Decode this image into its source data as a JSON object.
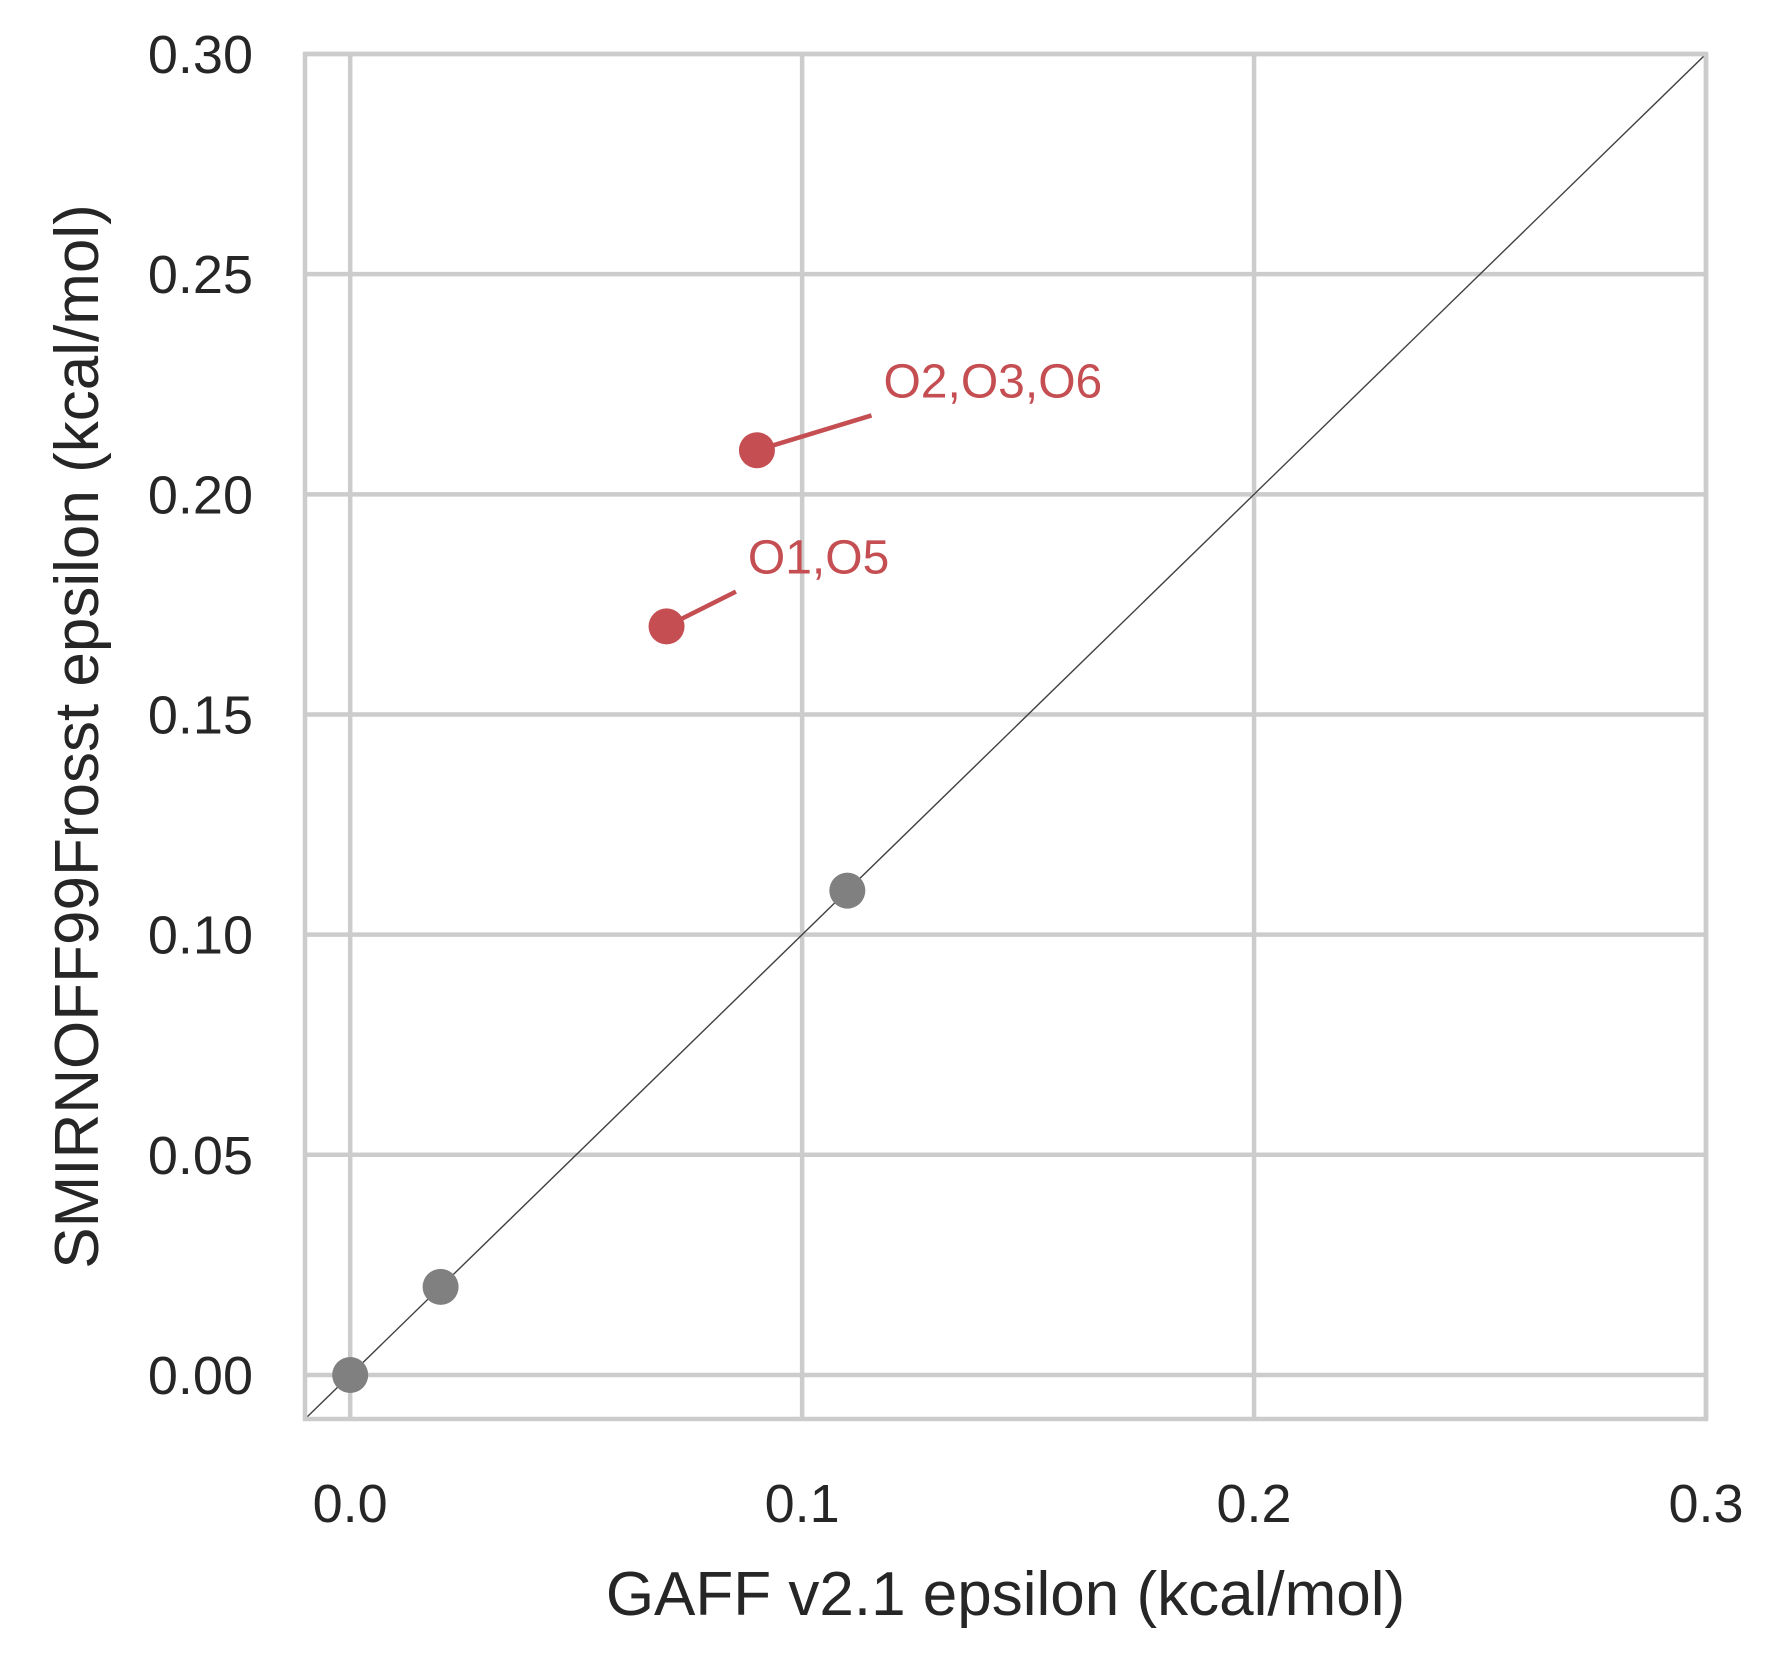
{
  "chart_data": {
    "type": "scatter",
    "title": "",
    "xlabel": "GAFF v2.1 epsilon (kcal/mol)",
    "ylabel": "SMIRNOFF99Frosst epsilon (kcal/mol)",
    "xlim": [
      -0.01,
      0.3
    ],
    "ylim": [
      -0.01,
      0.3
    ],
    "xticks": [
      0.0,
      0.1,
      0.2,
      0.3
    ],
    "xtick_labels": [
      "0.0",
      "0.1",
      "0.2",
      "0.3"
    ],
    "yticks": [
      0.0,
      0.05,
      0.1,
      0.15,
      0.2,
      0.25,
      0.3
    ],
    "ytick_labels": [
      "0.00",
      "0.05",
      "0.10",
      "0.15",
      "0.20",
      "0.25",
      "0.30"
    ],
    "grid": true,
    "legend": "none",
    "reference_line": {
      "x": [
        -0.01,
        0.3
      ],
      "y": [
        -0.01,
        0.3
      ],
      "color": "#404040"
    },
    "series": [
      {
        "color": "#808080",
        "points": [
          {
            "x": 0.0,
            "y": 0.0
          },
          {
            "x": 0.02,
            "y": 0.02
          },
          {
            "x": 0.11,
            "y": 0.11
          }
        ]
      },
      {
        "color": "#c44e52",
        "points": [
          {
            "x": 0.09,
            "y": 0.21,
            "label": "O2,O3,O6"
          },
          {
            "x": 0.07,
            "y": 0.17,
            "label": "O1,O5"
          }
        ]
      }
    ],
    "annotations": [
      {
        "text": "O2,O3,O6",
        "point": {
          "x": 0.09,
          "y": 0.21
        },
        "text_pos": {
          "x": 0.118,
          "y": 0.222
        }
      },
      {
        "text": "O1,O5",
        "point": {
          "x": 0.07,
          "y": 0.17
        },
        "text_pos": {
          "x": 0.088,
          "y": 0.182
        }
      }
    ]
  }
}
